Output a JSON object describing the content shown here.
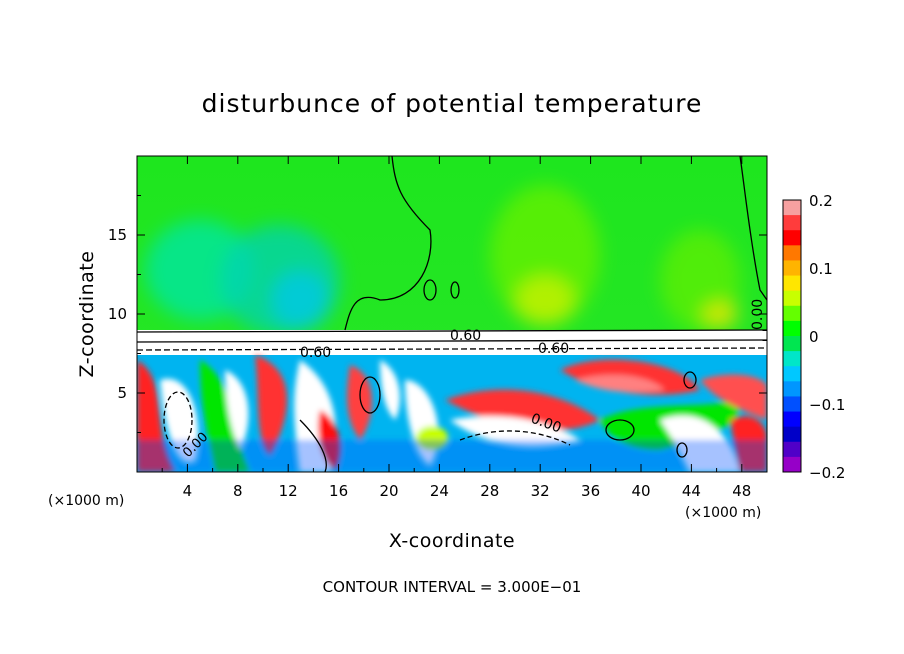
{
  "chart_data": {
    "type": "heatmap",
    "title": "disturbunce of potential temperature",
    "xlabel": "X-coordinate",
    "ylabel": "Z-coordinate",
    "x_unit_left": "(×1000 m)",
    "x_unit_right": "(×1000 m)",
    "xlim": [
      0,
      50
    ],
    "ylim": [
      0,
      20
    ],
    "x_ticks": [
      4,
      8,
      12,
      16,
      20,
      24,
      28,
      32,
      36,
      40,
      44,
      48
    ],
    "x_tick_labels": [
      "4",
      "8",
      "12",
      "16",
      "20",
      "24",
      "28",
      "32",
      "36",
      "40",
      "44",
      "48"
    ],
    "y_ticks": [
      5,
      10,
      15
    ],
    "y_tick_labels": [
      "5",
      "10",
      "15"
    ],
    "colorbar": {
      "range": [
        -0.2,
        0.2
      ],
      "tick_values": [
        0.2,
        0.1,
        0,
        -0.1,
        -0.2
      ],
      "tick_labels": [
        "0.2",
        "0.1",
        "0",
        "−0.1",
        "−0.2"
      ],
      "colors": [
        "#f6a0a0",
        "#ff3c3c",
        "#ff0000",
        "#ff7800",
        "#ffb400",
        "#ffe600",
        "#c8ff00",
        "#64ff00",
        "#00ff00",
        "#00e650",
        "#00e6c8",
        "#00c8ff",
        "#0096ff",
        "#0050ff",
        "#0000ff",
        "#0000c8",
        "#5000c8",
        "#9600c8"
      ]
    },
    "contour_labels": [
      "0.60",
      "0.60",
      "0.60",
      "0.00",
      "0.00",
      "0.00"
    ],
    "contour_interval_text": "CONTOUR INTERVAL = 3.000E−01"
  }
}
